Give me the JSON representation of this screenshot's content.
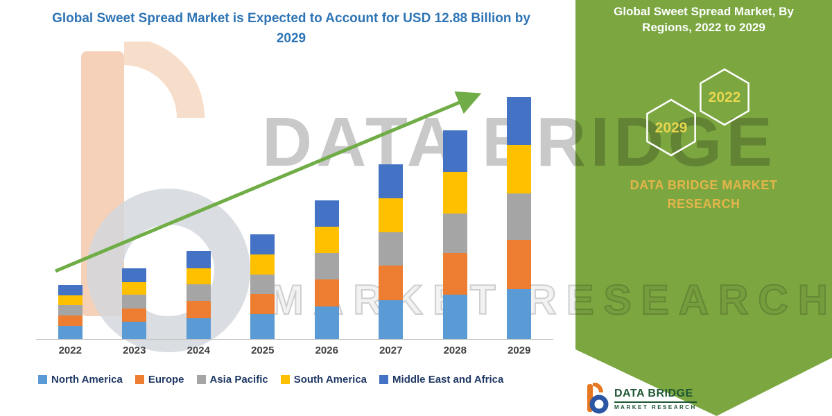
{
  "chart_data": {
    "type": "bar",
    "stacked": true,
    "title": "Global Sweet Spread Market is Expected to Account for USD 12.88 Billion by 2029",
    "categories": [
      "2022",
      "2023",
      "2024",
      "2025",
      "2026",
      "2027",
      "2028",
      "2029"
    ],
    "series": [
      {
        "name": "North America",
        "color": "#5B9BD5",
        "values": [
          0.75,
          0.95,
          1.15,
          1.35,
          1.75,
          2.1,
          2.4,
          2.7
        ]
      },
      {
        "name": "Europe",
        "color": "#ED7D31",
        "values": [
          0.55,
          0.72,
          0.9,
          1.08,
          1.45,
          1.85,
          2.2,
          2.6
        ]
      },
      {
        "name": "Asia Pacific",
        "color": "#A5A5A5",
        "values": [
          0.55,
          0.72,
          0.88,
          1.05,
          1.4,
          1.75,
          2.1,
          2.45
        ]
      },
      {
        "name": "South America",
        "color": "#FFC000",
        "values": [
          0.5,
          0.68,
          0.85,
          1.05,
          1.4,
          1.8,
          2.2,
          2.6
        ]
      },
      {
        "name": "Middle East and Africa",
        "color": "#4472C4",
        "values": [
          0.55,
          0.73,
          0.92,
          1.07,
          1.4,
          1.8,
          2.2,
          2.53
        ]
      }
    ],
    "totals": [
      2.9,
      3.8,
      4.7,
      5.6,
      7.4,
      9.3,
      11.1,
      12.88
    ],
    "ylim": [
      0,
      13
    ],
    "grid": false,
    "legend_position": "bottom",
    "annotation": "upward growth trend arrow",
    "arrow_color": "#70AD47"
  },
  "side_panel": {
    "title": "Global Sweet Spread Market, By Regions, 2022 to 2029",
    "hexagons": [
      "2029",
      "2022"
    ],
    "brand": "DATA BRIDGE MARKET RESEARCH",
    "bg_color": "#7BA640",
    "year_text_color": "#E9D64F",
    "brand_text_color": "#E3B54A"
  },
  "watermark": {
    "line1": "DATA BRIDGE",
    "line2": "MARKET RESEARCH"
  },
  "footer_logo": {
    "brand": "DATA BRIDGE",
    "sub": "MARKET RESEARCH"
  }
}
